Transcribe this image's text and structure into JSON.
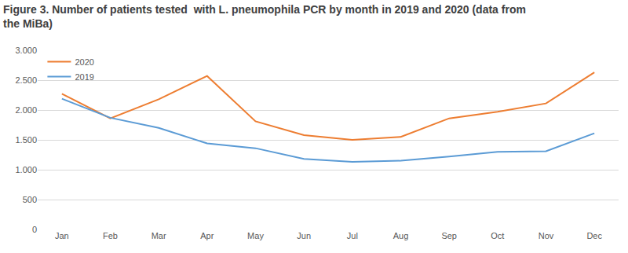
{
  "chart_data": {
    "type": "line",
    "title": "Figure 3. Number of patients tested  with L. pneumophila PCR by month in 2019 and 2020 (data from the MiBa)",
    "categories": [
      "Jan",
      "Feb",
      "Mar",
      "Apr",
      "May",
      "Jun",
      "Jul",
      "Aug",
      "Sep",
      "Oct",
      "Nov",
      "Dec"
    ],
    "series": [
      {
        "name": "2020",
        "color": "#ed7d31",
        "values": [
          2270,
          1860,
          2180,
          2570,
          1810,
          1580,
          1500,
          1550,
          1860,
          1970,
          2110,
          2630
        ]
      },
      {
        "name": "2019",
        "color": "#5b9bd5",
        "values": [
          2190,
          1870,
          1700,
          1440,
          1360,
          1180,
          1130,
          1150,
          1220,
          1300,
          1310,
          1610
        ]
      }
    ],
    "ylim": [
      0,
      3000
    ],
    "yticks": [
      0,
      500,
      {
        "value": 1000,
        "label": "1.000"
      },
      {
        "value": 1500,
        "label": "1.500"
      },
      {
        "value": 2000,
        "label": "2.000"
      },
      {
        "value": 2500,
        "label": "2.500"
      },
      {
        "value": 3000,
        "label": "3.000"
      }
    ],
    "grid": true,
    "legend": "upper left"
  }
}
